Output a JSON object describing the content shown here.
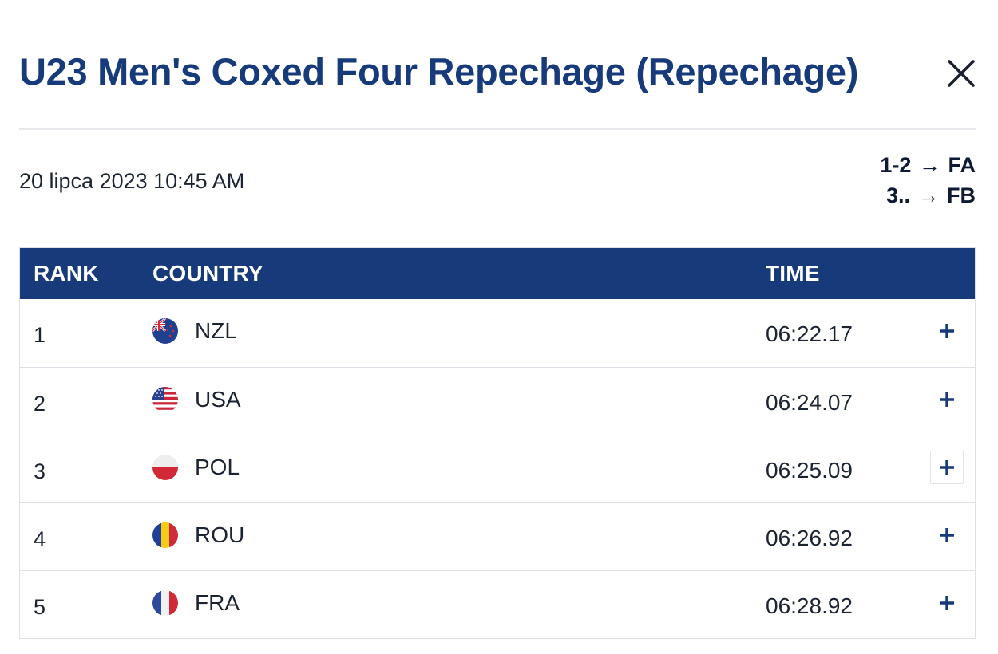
{
  "modal": {
    "title": "U23 Men's Coxed Four Repechage (Repechage)",
    "date": "20 lipca 2023 10:45 AM",
    "progression": [
      {
        "ranks": "1-2",
        "arrow": "→",
        "final": "FA"
      },
      {
        "ranks": "3..",
        "arrow": "→",
        "final": "FB"
      }
    ]
  },
  "table": {
    "headers": {
      "rank": "RANK",
      "country": "COUNTRY",
      "time": "TIME"
    },
    "rows": [
      {
        "rank": "1",
        "country": "NZL",
        "time": "06:22.17",
        "flag": "nzl-flag-icon"
      },
      {
        "rank": "2",
        "country": "USA",
        "time": "06:24.07",
        "flag": "usa-flag-icon"
      },
      {
        "rank": "3",
        "country": "POL",
        "time": "06:25.09",
        "flag": "pol-flag-icon"
      },
      {
        "rank": "4",
        "country": "ROU",
        "time": "06:26.92",
        "flag": "rou-flag-icon"
      },
      {
        "rank": "5",
        "country": "FRA",
        "time": "06:28.92",
        "flag": "fra-flag-icon"
      }
    ]
  },
  "colors": {
    "brand": "#173a7a",
    "divider": "#dde1e7"
  },
  "icons": {
    "close": "close-icon",
    "expand": "plus-icon"
  }
}
